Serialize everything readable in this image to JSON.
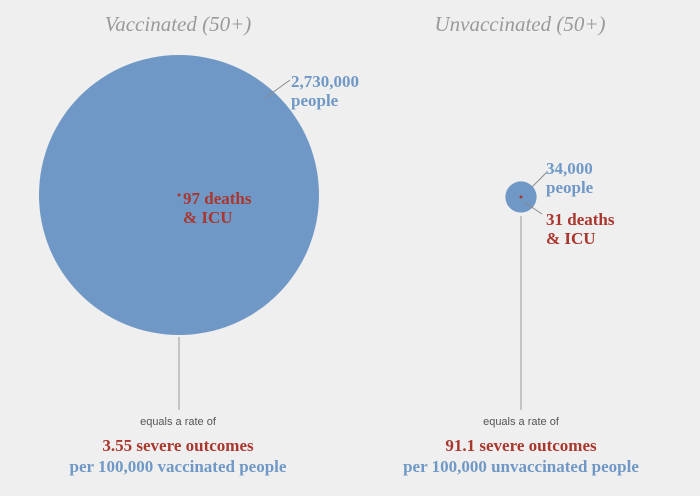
{
  "chart_data": [
    {
      "type": "bubble",
      "title": "Vaccinated (50+)",
      "population": 2730000,
      "population_label": "2,730,000",
      "population_unit": "people",
      "severe_outcomes": 97,
      "outcomes_label": "97 deaths",
      "outcomes_label_2": "& ICU",
      "rate_intro": "equals a rate of",
      "rate": 3.55,
      "rate_label": "3.55 severe outcomes",
      "rate_unit": "per 100,000 vaccinated people"
    },
    {
      "type": "bubble",
      "title": "Unvaccinated (50+)",
      "population": 34000,
      "population_label": "34,000",
      "population_unit": "people",
      "severe_outcomes": 31,
      "outcomes_label": "31 deaths",
      "outcomes_label_2": "& ICU",
      "rate_intro": "equals a rate of",
      "rate": 91.1,
      "rate_label": "91.1 severe outcomes",
      "rate_unit": "per 100,000 unvaccinated people"
    }
  ],
  "colors": {
    "population": "#6f98c6",
    "outcomes": "#a9372e",
    "background": "#efefef",
    "title": "#9a9a9a"
  }
}
